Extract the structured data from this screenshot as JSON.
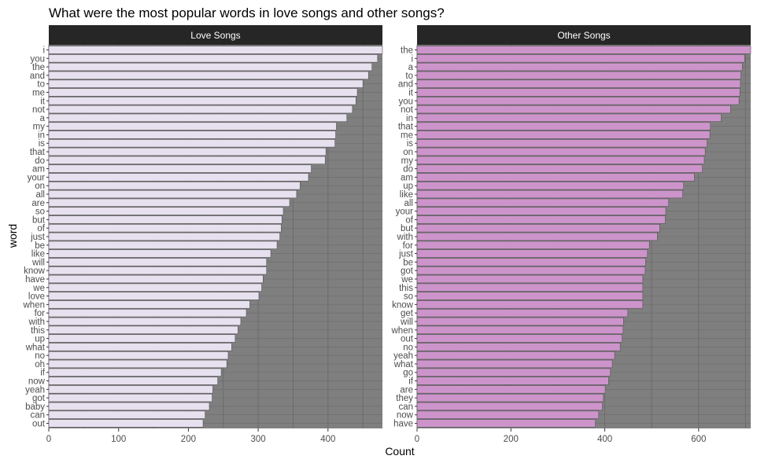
{
  "chart_data": {
    "type": "bar",
    "orientation": "horizontal",
    "title": "What were the most popular words in love songs and other songs?",
    "xlabel": "Count",
    "ylabel": "word",
    "panel_background": "#7f7f7f",
    "strip_background": "#262626",
    "panels": [
      {
        "name": "Love Songs",
        "color": "#e6e0ef",
        "xlim": [
          0,
          478
        ],
        "xticks": [
          0,
          100,
          200,
          300,
          400
        ],
        "words": [
          "i",
          "you",
          "the",
          "and",
          "to",
          "me",
          "it",
          "not",
          "a",
          "my",
          "in",
          "is",
          "that",
          "do",
          "am",
          "your",
          "on",
          "all",
          "are",
          "so",
          "but",
          "of",
          "just",
          "be",
          "like",
          "will",
          "know",
          "have",
          "we",
          "love",
          "when",
          "for",
          "with",
          "this",
          "up",
          "what",
          "no",
          "oh",
          "if",
          "now",
          "yeah",
          "got",
          "baby",
          "can",
          "out"
        ],
        "values": [
          478,
          471,
          463,
          458,
          450,
          442,
          440,
          435,
          427,
          412,
          411,
          410,
          397,
          396,
          376,
          372,
          360,
          355,
          345,
          336,
          334,
          333,
          331,
          327,
          318,
          312,
          312,
          307,
          305,
          301,
          288,
          283,
          275,
          271,
          267,
          262,
          257,
          255,
          247,
          242,
          235,
          234,
          230,
          224,
          221
        ]
      },
      {
        "name": "Other Songs",
        "color": "#cd94cb",
        "xlim": [
          0,
          711
        ],
        "xticks": [
          0,
          200,
          400,
          600
        ],
        "words": [
          "the",
          "i",
          "a",
          "to",
          "and",
          "it",
          "you",
          "not",
          "in",
          "that",
          "me",
          "is",
          "on",
          "my",
          "do",
          "am",
          "up",
          "like",
          "all",
          "your",
          "of",
          "but",
          "with",
          "for",
          "just",
          "be",
          "got",
          "we",
          "this",
          "so",
          "know",
          "get",
          "will",
          "when",
          "out",
          "no",
          "yeah",
          "what",
          "go",
          "if",
          "are",
          "they",
          "can",
          "now",
          "have"
        ],
        "values": [
          711,
          698,
          693,
          690,
          689,
          688,
          686,
          668,
          648,
          625,
          624,
          618,
          614,
          612,
          608,
          591,
          568,
          566,
          536,
          530,
          529,
          517,
          512,
          495,
          491,
          487,
          486,
          481,
          481,
          481,
          481,
          449,
          440,
          439,
          437,
          433,
          421,
          416,
          412,
          408,
          401,
          397,
          395,
          387,
          380
        ]
      }
    ]
  }
}
